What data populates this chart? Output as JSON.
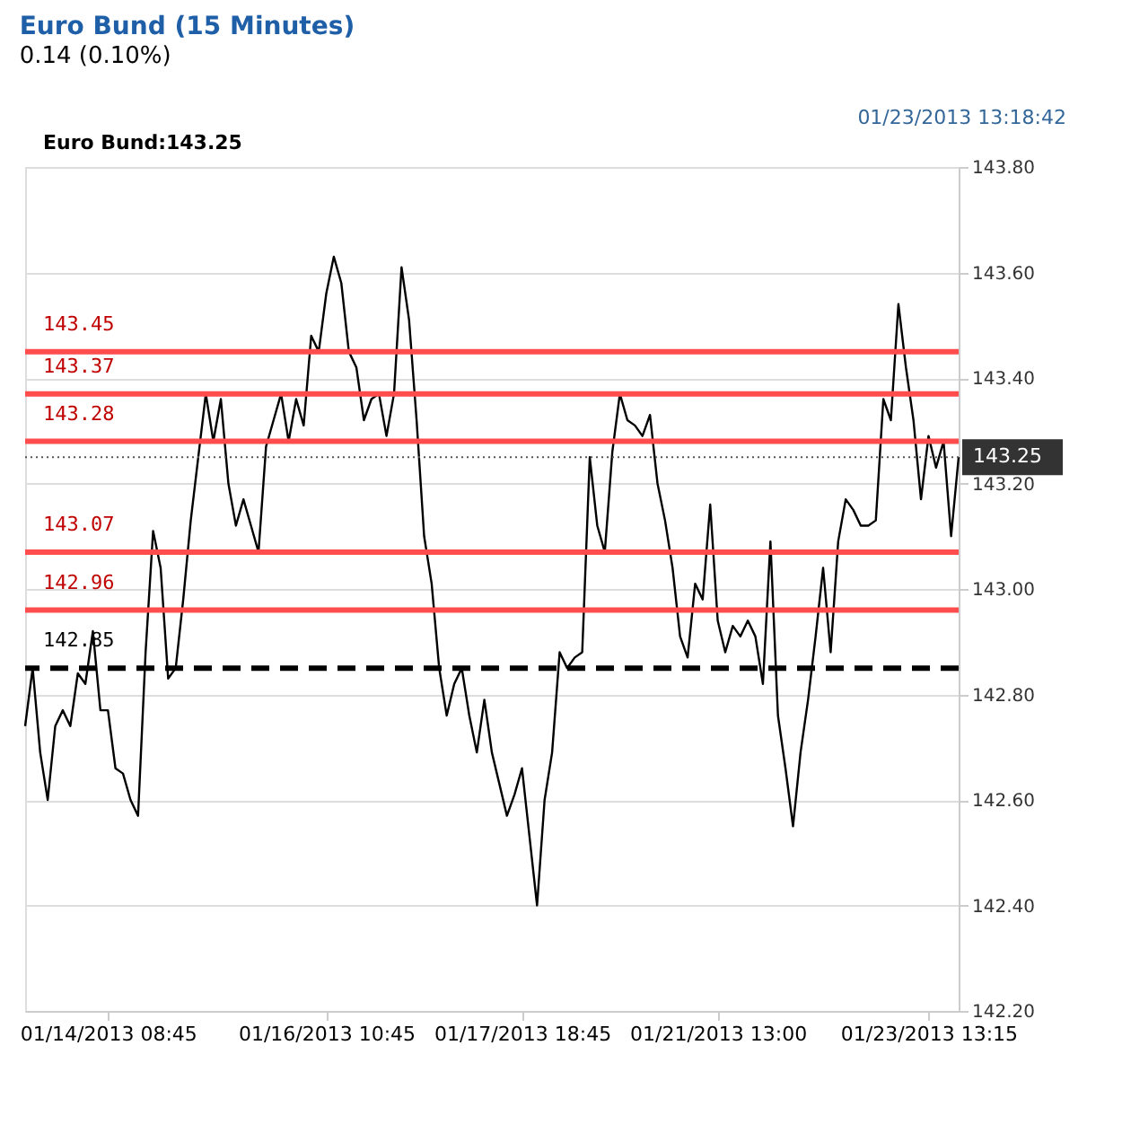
{
  "chart_data": {
    "type": "line",
    "title": "Euro Bund (15 Minutes)",
    "subtitle": "0.14 (0.10%)",
    "annotations": [
      "01/23/2013 13:18:42",
      "Euro Bund:143.25"
    ],
    "categories": [
      null,
      null,
      null,
      null,
      null,
      null,
      null,
      null,
      null,
      null,
      null,
      "01/14/2013 08:45",
      null,
      null,
      null,
      null,
      null,
      null,
      null,
      null,
      null,
      null,
      null,
      null,
      null,
      null,
      null,
      null,
      null,
      null,
      null,
      null,
      null,
      null,
      null,
      null,
      null,
      null,
      null,
      null,
      "01/16/2013 10:45",
      null,
      null,
      null,
      null,
      null,
      null,
      null,
      null,
      null,
      null,
      null,
      null,
      null,
      null,
      null,
      null,
      null,
      null,
      null,
      null,
      null,
      null,
      null,
      null,
      null,
      "01/17/2013 18:45",
      null,
      null,
      null,
      null,
      null,
      null,
      null,
      null,
      null,
      null,
      null,
      null,
      null,
      null,
      null,
      null,
      null,
      null,
      null,
      null,
      null,
      null,
      null,
      null,
      null,
      "01/21/2013 13:00",
      null,
      null,
      null,
      null,
      null,
      null,
      null,
      null,
      null,
      null,
      null,
      null,
      null,
      null,
      null,
      null,
      null,
      null,
      null,
      null,
      null,
      null,
      null,
      null,
      null,
      null,
      null,
      "01/23/2013 13:15",
      null,
      null,
      null,
      null
    ],
    "series": [
      {
        "color": "#000000",
        "values": [
          142.74,
          142.85,
          142.69,
          142.6,
          142.74,
          142.77,
          142.74,
          142.84,
          142.82,
          142.92,
          142.77,
          142.77,
          142.66,
          142.65,
          142.6,
          142.57,
          142.88,
          143.11,
          143.04,
          142.83,
          142.85,
          142.98,
          143.13,
          143.25,
          143.37,
          143.28,
          143.36,
          143.2,
          143.12,
          143.17,
          143.12,
          143.07,
          143.27,
          143.32,
          143.37,
          143.28,
          143.36,
          143.31,
          143.48,
          143.45,
          143.56,
          143.63,
          143.58,
          143.45,
          143.42,
          143.32,
          143.36,
          143.37,
          143.29,
          143.37,
          143.61,
          143.51,
          143.32,
          143.1,
          143.01,
          142.85,
          142.76,
          142.82,
          142.85,
          142.76,
          142.69,
          142.79,
          142.69,
          142.63,
          142.57,
          142.61,
          142.66,
          142.53,
          142.4,
          142.6,
          142.69,
          142.88,
          142.85,
          142.87,
          142.88,
          143.25,
          143.12,
          143.07,
          143.26,
          143.37,
          143.32,
          143.31,
          143.29,
          143.33,
          143.2,
          143.13,
          143.04,
          142.91,
          142.87,
          143.01,
          142.98,
          143.16,
          142.94,
          142.88,
          142.93,
          142.91,
          142.94,
          142.91,
          142.82,
          143.09,
          142.76,
          142.66,
          142.55,
          142.69,
          142.79,
          142.91,
          143.04,
          142.88,
          143.09,
          143.17,
          143.15,
          143.12,
          143.12,
          143.13,
          143.36,
          143.32,
          143.54,
          143.42,
          143.32,
          143.17,
          143.29,
          143.23,
          143.28,
          143.1,
          143.25
        ]
      }
    ],
    "ylim": [
      142.2,
      143.8
    ],
    "yticks": [
      {
        "value": 142.2,
        "label": "142.20"
      },
      {
        "value": 142.4,
        "label": "142.40"
      },
      {
        "value": 142.6,
        "label": "142.60"
      },
      {
        "value": 142.8,
        "label": "142.80"
      },
      {
        "value": 143.0,
        "label": "143.00"
      },
      {
        "value": 143.2,
        "label": "143.20"
      },
      {
        "value": 143.4,
        "label": "143.40"
      },
      {
        "value": 143.6,
        "label": "143.60"
      },
      {
        "value": 143.8,
        "label": "143.80"
      }
    ],
    "grid": "y",
    "ref_lines": [
      {
        "axis": "y",
        "value": 143.45,
        "label": "143.45",
        "color": "#ff4d4d",
        "line_style": "solid"
      },
      {
        "axis": "y",
        "value": 143.37,
        "label": "143.37",
        "color": "#ff4d4d",
        "line_style": "solid"
      },
      {
        "axis": "y",
        "value": 143.28,
        "label": "143.28",
        "color": "#ff4d4d",
        "line_style": "solid"
      },
      {
        "axis": "y",
        "value": 143.07,
        "label": "143.07",
        "color": "#ff4d4d",
        "line_style": "solid"
      },
      {
        "axis": "y",
        "value": 142.96,
        "label": "142.96",
        "color": "#ff4d4d",
        "line_style": "solid"
      },
      {
        "axis": "y",
        "value": 142.85,
        "label": "142.85",
        "color": "#000000",
        "line_style": "dashed"
      },
      {
        "axis": "y",
        "value": 143.25,
        "label": "143.25",
        "color": "#555555",
        "line_style": "dotted"
      }
    ]
  }
}
